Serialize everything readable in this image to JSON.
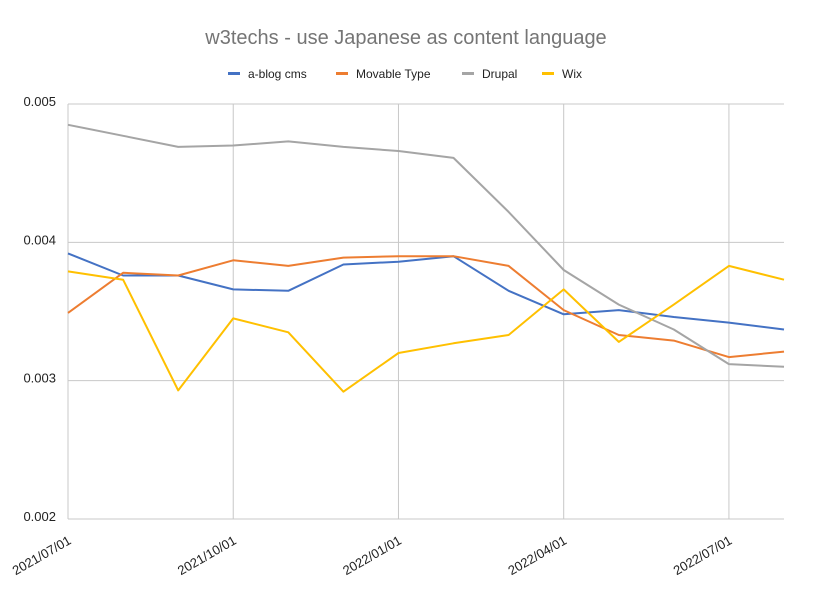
{
  "chart_data": {
    "type": "line",
    "title": "w3techs - use Japanese as content language",
    "xlabel": "",
    "ylabel": "",
    "x": [
      "2021/07/01",
      "2021/08/01",
      "2021/09/01",
      "2021/10/01",
      "2021/11/01",
      "2021/12/01",
      "2022/01/01",
      "2022/02/01",
      "2022/03/01",
      "2022/04/01",
      "2022/05/01",
      "2022/06/01",
      "2022/07/01",
      "2022/08/01"
    ],
    "x_tick_labels": [
      "2021/07/01",
      "2021/10/01",
      "2022/01/01",
      "2022/04/01",
      "2022/07/01"
    ],
    "x_tick_indices": [
      0,
      3,
      6,
      9,
      12
    ],
    "y_tick_labels": [
      "0.002",
      "0.003",
      "0.004",
      "0.005"
    ],
    "y_ticks": [
      0.002,
      0.003,
      0.004,
      0.005
    ],
    "ylim": [
      0.002,
      0.005
    ],
    "grid": true,
    "legend_position": "top",
    "series": [
      {
        "name": "a-blog cms",
        "color": "#4472c4",
        "values": [
          0.00392,
          0.00376,
          0.00376,
          0.00366,
          0.00365,
          0.00384,
          0.00386,
          0.0039,
          0.00365,
          0.00348,
          0.00351,
          0.00346,
          0.00342,
          0.00337
        ]
      },
      {
        "name": "Movable Type",
        "color": "#ed7d31",
        "values": [
          0.00349,
          0.00378,
          0.00376,
          0.00387,
          0.00383,
          0.00389,
          0.0039,
          0.0039,
          0.00383,
          0.00351,
          0.00333,
          0.00329,
          0.00317,
          0.00321
        ]
      },
      {
        "name": "Drupal",
        "color": "#a5a5a5",
        "values": [
          0.00485,
          0.00477,
          0.00469,
          0.0047,
          0.00473,
          0.00469,
          0.00466,
          0.00461,
          0.00422,
          0.0038,
          0.00355,
          0.00337,
          0.00312,
          0.0031
        ]
      },
      {
        "name": "Wix",
        "color": "#ffc000",
        "values": [
          0.00379,
          0.00373,
          0.00293,
          0.00345,
          0.00335,
          0.00292,
          0.0032,
          0.00327,
          0.00333,
          0.00366,
          0.00328,
          0.00355,
          0.00383,
          0.00373
        ]
      }
    ]
  }
}
